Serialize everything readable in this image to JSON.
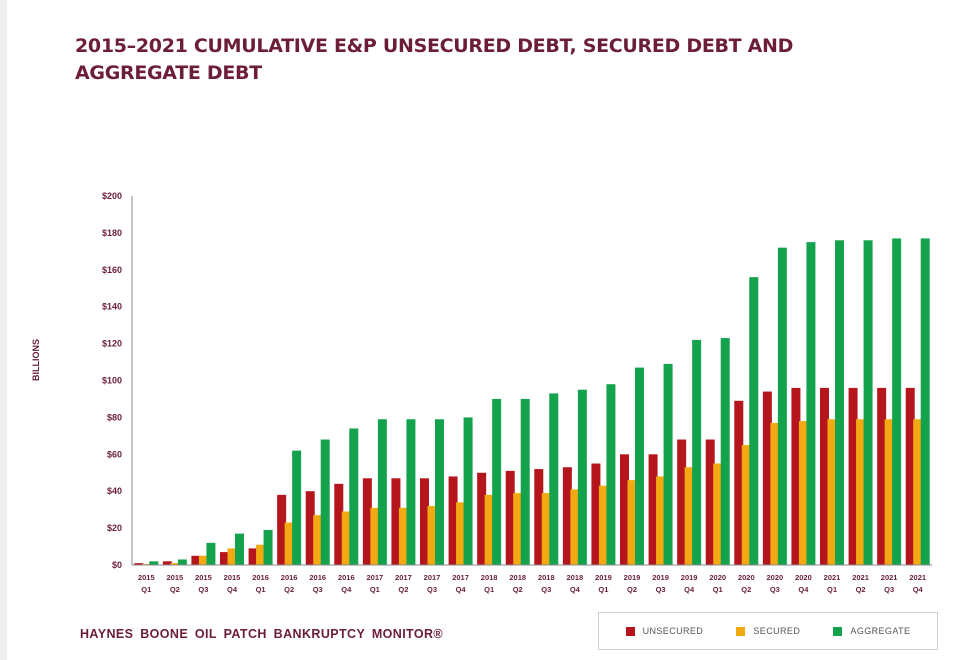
{
  "chart_data": {
    "type": "bar",
    "title": "2015–2021 CUMULATIVE E&P UNSECURED DEBT, SECURED DEBT AND AGGREGATE DEBT",
    "ylabel": "BILLIONS",
    "ylim": [
      0,
      200
    ],
    "yticks": [
      "$0",
      "$20",
      "$40",
      "$60",
      "$80",
      "$100",
      "$120",
      "$140",
      "$160",
      "$180",
      "$200"
    ],
    "ytick_values": [
      0,
      20,
      40,
      60,
      80,
      100,
      120,
      140,
      160,
      180,
      200
    ],
    "categories": [
      [
        "2015",
        "Q1"
      ],
      [
        "2015",
        "Q2"
      ],
      [
        "2015",
        "Q3"
      ],
      [
        "2015",
        "Q4"
      ],
      [
        "2016",
        "Q1"
      ],
      [
        "2016",
        "Q2"
      ],
      [
        "2016",
        "Q3"
      ],
      [
        "2016",
        "Q4"
      ],
      [
        "2017",
        "Q1"
      ],
      [
        "2017",
        "Q2"
      ],
      [
        "2017",
        "Q3"
      ],
      [
        "2017",
        "Q4"
      ],
      [
        "2018",
        "Q1"
      ],
      [
        "2018",
        "Q2"
      ],
      [
        "2018",
        "Q3"
      ],
      [
        "2018",
        "Q4"
      ],
      [
        "2019",
        "Q1"
      ],
      [
        "2019",
        "Q2"
      ],
      [
        "2019",
        "Q3"
      ],
      [
        "2019",
        "Q4"
      ],
      [
        "2020",
        "Q1"
      ],
      [
        "2020",
        "Q2"
      ],
      [
        "2020",
        "Q3"
      ],
      [
        "2020",
        "Q4"
      ],
      [
        "2021",
        "Q1"
      ],
      [
        "2021",
        "Q2"
      ],
      [
        "2021",
        "Q3"
      ],
      [
        "2021",
        "Q4"
      ]
    ],
    "series": [
      {
        "name": "UNSECURED",
        "color": "#b5161d",
        "values": [
          1,
          2,
          5,
          7,
          9,
          38,
          40,
          44,
          47,
          47,
          47,
          48,
          50,
          51,
          52,
          53,
          55,
          60,
          60,
          68,
          68,
          89,
          94,
          96,
          96,
          96,
          96,
          96
        ]
      },
      {
        "name": "SECURED",
        "color": "#f2a912",
        "values": [
          0.5,
          1,
          5,
          9,
          11,
          23,
          27,
          29,
          31,
          31,
          32,
          34,
          38,
          39,
          39,
          41,
          43,
          46,
          48,
          53,
          55,
          65,
          77,
          78,
          79,
          79,
          79,
          79
        ]
      },
      {
        "name": "AGGREGATE",
        "color": "#15a24d",
        "values": [
          2,
          3,
          12,
          17,
          19,
          62,
          68,
          74,
          79,
          79,
          79,
          80,
          90,
          90,
          93,
          95,
          98,
          107,
          109,
          122,
          123,
          156,
          172,
          175,
          176,
          176,
          177,
          177
        ]
      }
    ],
    "legend_position": "bottom-right",
    "grid": false
  },
  "footer": {
    "brand": "HAYNES BOONE OIL PATCH BANKRUPTCY MONITOR®"
  },
  "legend": {
    "items": [
      {
        "label": "UNSECURED",
        "color": "#b5161d"
      },
      {
        "label": "SECURED",
        "color": "#f2a912"
      },
      {
        "label": "AGGREGATE",
        "color": "#15a24d"
      }
    ]
  }
}
